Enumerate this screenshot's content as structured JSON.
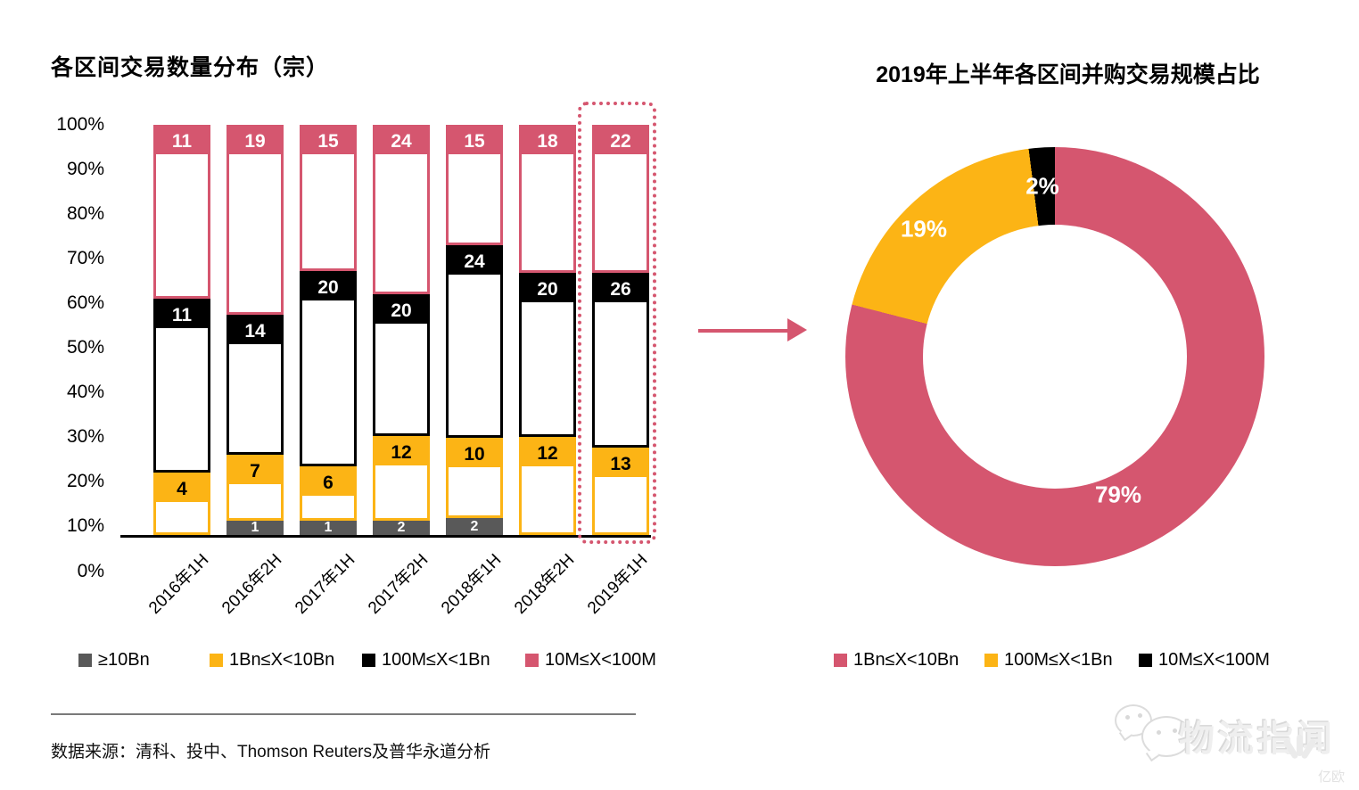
{
  "page": {
    "background": "#ffffff"
  },
  "colors": {
    "pink": "#d5566f",
    "yellow": "#fcb415",
    "black": "#000000",
    "gray": "#595959"
  },
  "chart_data": [
    {
      "type": "bar",
      "stacked": true,
      "percent_of_total": true,
      "title": "各区间交易数量分布（宗）",
      "categories": [
        "2016年1H",
        "2016年2H",
        "2017年1H",
        "2017年2H",
        "2018年1H",
        "2018年2H",
        "2019年1H"
      ],
      "series": [
        {
          "name": "≥10Bn",
          "color": "#595959",
          "values": [
            null,
            1,
            1,
            2,
            2,
            null,
            null
          ]
        },
        {
          "name": "1Bn≤X<10Bn",
          "color": "#fcb415",
          "values": [
            4,
            7,
            6,
            12,
            10,
            12,
            13
          ]
        },
        {
          "name": "100M≤X<1Bn",
          "color": "#000000",
          "values": [
            11,
            14,
            20,
            20,
            24,
            20,
            26
          ]
        },
        {
          "name": "10M≤X<100M",
          "color": "#d5566f",
          "values": [
            11,
            19,
            15,
            24,
            15,
            18,
            22
          ]
        }
      ],
      "y_axis": {
        "labels": [
          "100%",
          "90%",
          "80%",
          "70%",
          "60%",
          "50%",
          "40%",
          "30%",
          "20%",
          "10%",
          "0%"
        ],
        "min": 0,
        "max": 100
      },
      "highlight": {
        "category": "2019年1H",
        "style": "dotted-outline",
        "color": "#d5566f"
      },
      "legend_position": "bottom",
      "grid": false
    },
    {
      "type": "pie",
      "subtype": "donut",
      "title": "2019年上半年各区间并购交易规模占比",
      "slices": [
        {
          "label": "1Bn≤X<10Bn",
          "value": 79,
          "display": "79%",
          "color": "#d5566f"
        },
        {
          "label": "100M≤X<1Bn",
          "value": 19,
          "display": "19%",
          "color": "#fcb415"
        },
        {
          "label": "10M≤X<100M",
          "value": 2,
          "display": "2%",
          "color": "#000000"
        }
      ],
      "start_angle_deg": 0,
      "direction": "clockwise",
      "legend_position": "bottom"
    }
  ],
  "arrow": {
    "direction": "right",
    "color": "#d5566f"
  },
  "footer": {
    "source_text": "数据来源：清科、投中、Thomson Reuters及普华永道分析"
  },
  "watermark": {
    "brand": "物流指闻",
    "partner": "亿欧"
  }
}
